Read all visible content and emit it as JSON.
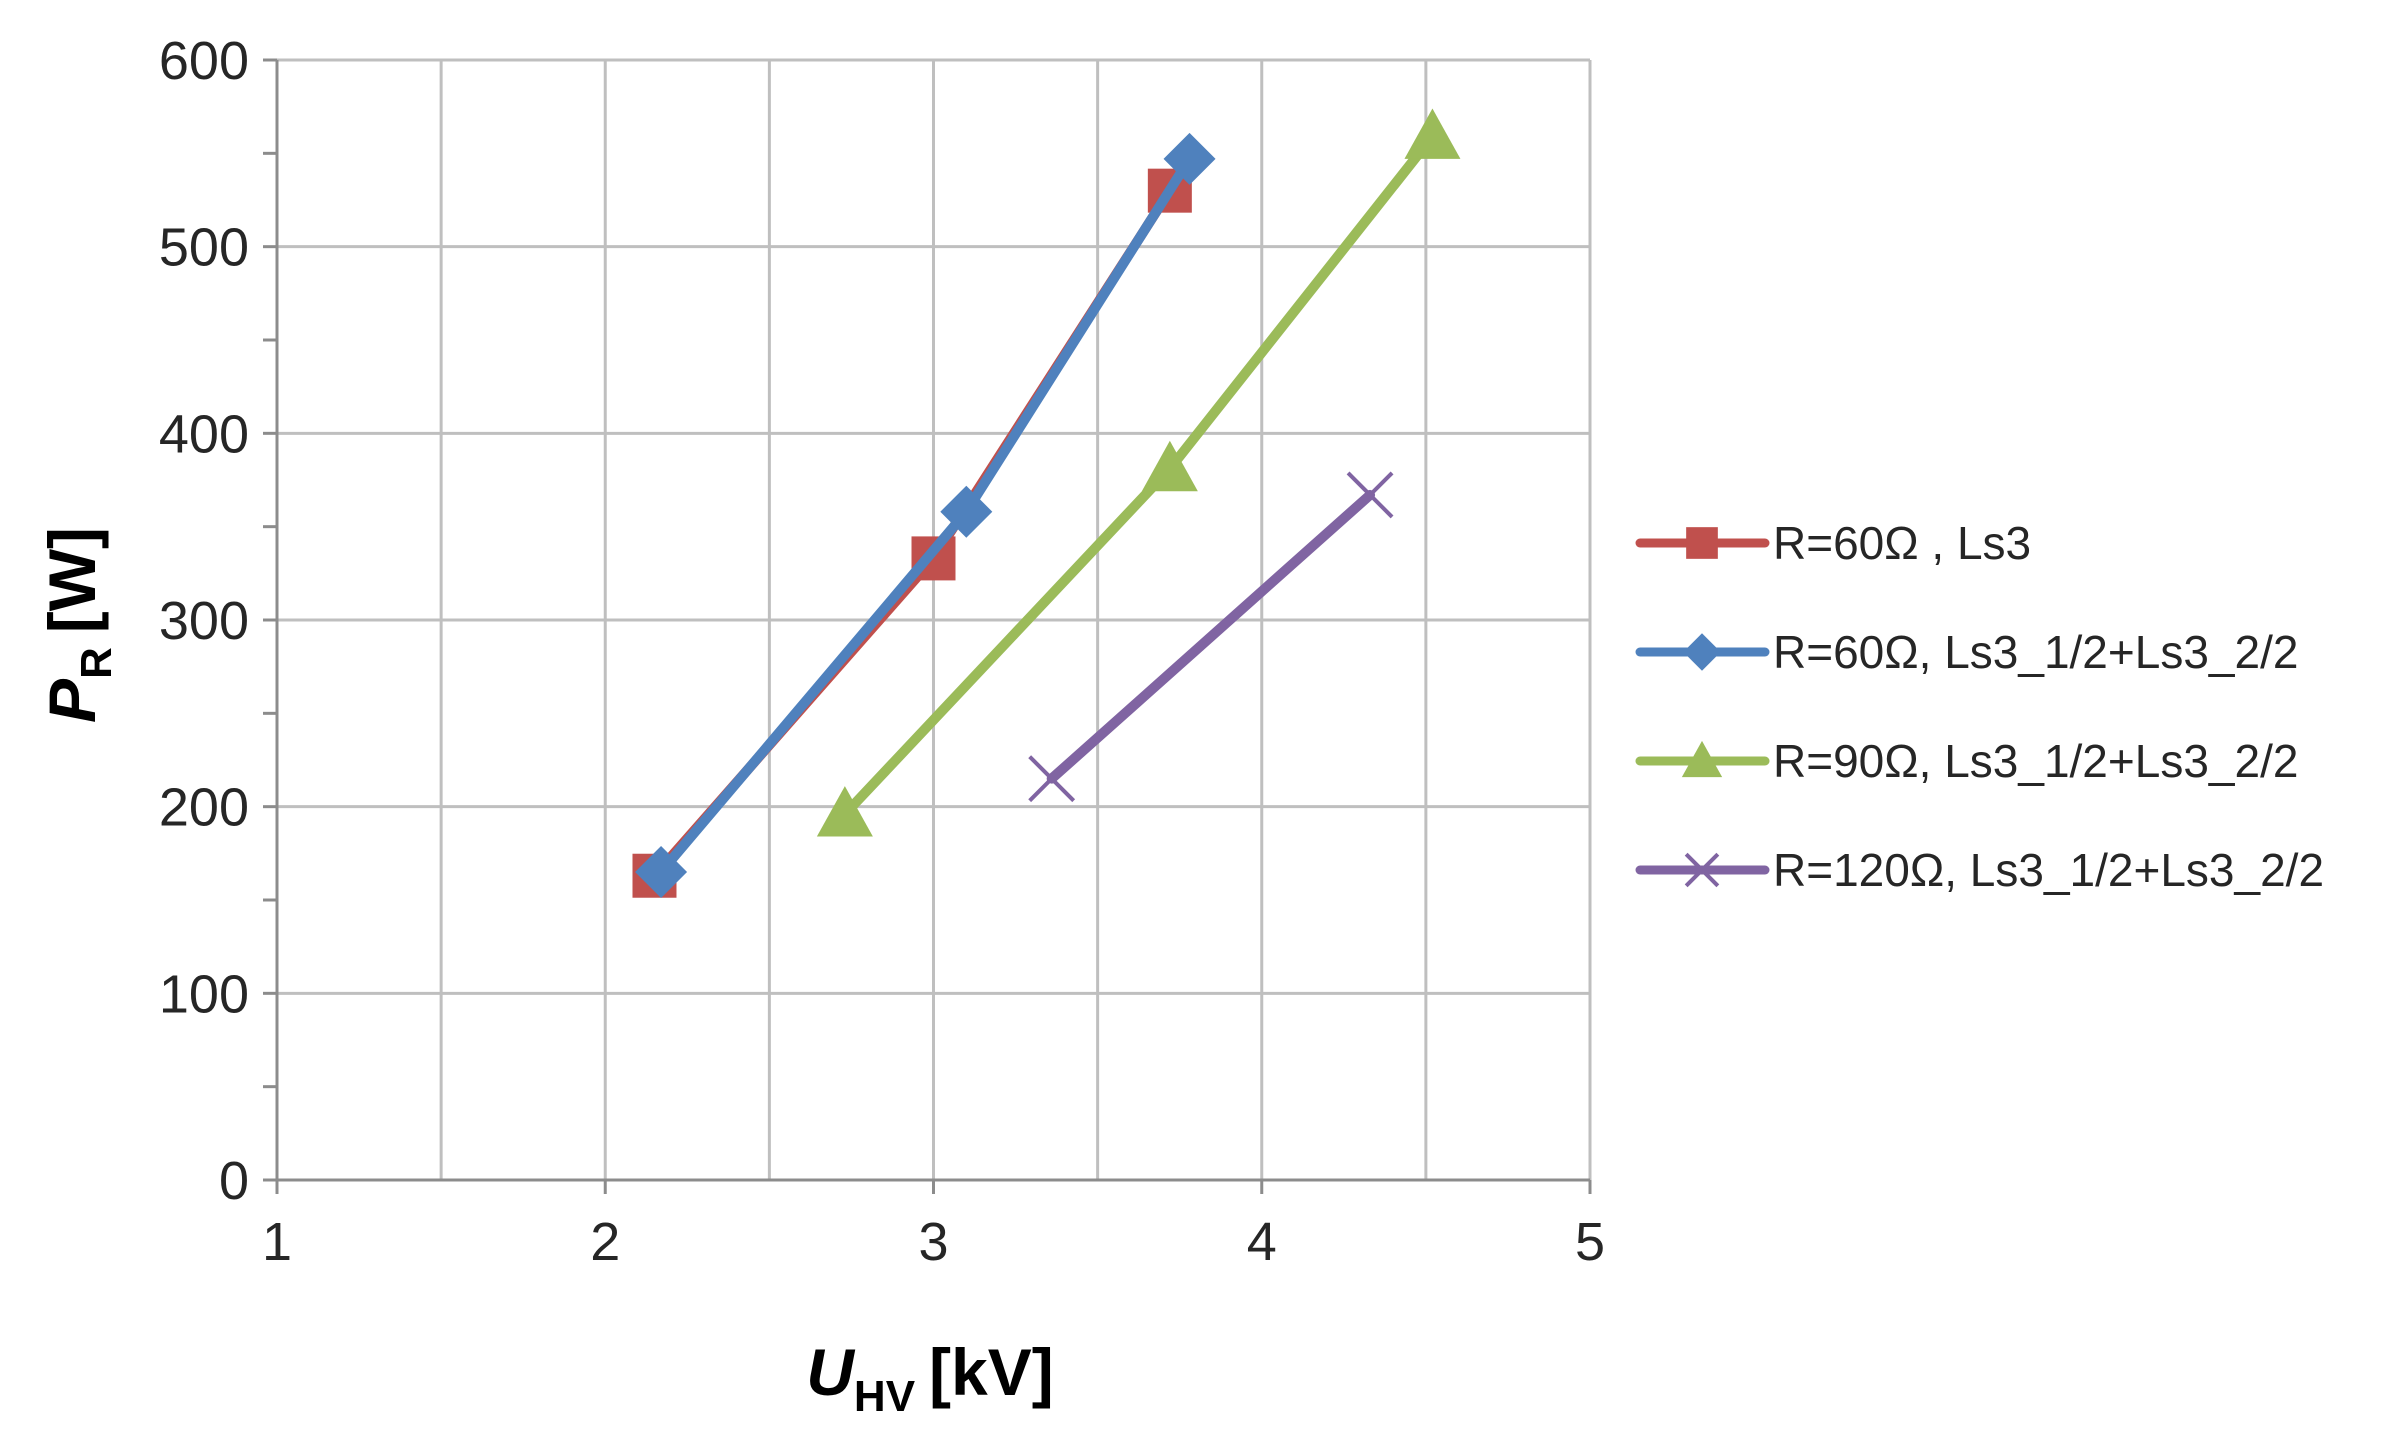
{
  "chart_data": {
    "type": "line",
    "title": "",
    "xlabel": {
      "main": "U",
      "sub": "HV",
      "unit": "[kV]"
    },
    "ylabel": {
      "main": "P",
      "sub": "R",
      "unit": "[W]"
    },
    "xlim": [
      1,
      5
    ],
    "ylim": [
      0,
      600
    ],
    "xticks": [
      1,
      2,
      3,
      4,
      5
    ],
    "xticks_labels": [
      "1",
      "2",
      "3",
      "4",
      "5"
    ],
    "x_grid_step": 0.5,
    "yticks": [
      0,
      100,
      200,
      300,
      400,
      500,
      600
    ],
    "yticks_labels": [
      "0",
      "100",
      "200",
      "300",
      "400",
      "500",
      "600"
    ],
    "y_minor_step": 50,
    "grid": true,
    "legend_position": "right",
    "series": [
      {
        "name": "R=60Ω ,   Ls3",
        "color": "#C0504D",
        "marker": "square",
        "points": [
          [
            2.15,
            163
          ],
          [
            3.0,
            333
          ],
          [
            3.72,
            530
          ]
        ]
      },
      {
        "name": "R=60Ω,   Ls3_1/2+Ls3_2/2",
        "color": "#4F81BD",
        "marker": "diamond",
        "points": [
          [
            2.17,
            165
          ],
          [
            3.1,
            358
          ],
          [
            3.78,
            547
          ]
        ]
      },
      {
        "name": "R=90Ω,   Ls3_1/2+Ls3_2/2",
        "color": "#9BBB59",
        "marker": "triangle",
        "points": [
          [
            2.73,
            196
          ],
          [
            3.72,
            381
          ],
          [
            4.52,
            559
          ]
        ]
      },
      {
        "name": "R=120Ω, Ls3_1/2+Ls3_2/2",
        "color": "#8064A2",
        "marker": "x",
        "points": [
          [
            3.36,
            215
          ],
          [
            4.33,
            367
          ]
        ]
      }
    ]
  }
}
